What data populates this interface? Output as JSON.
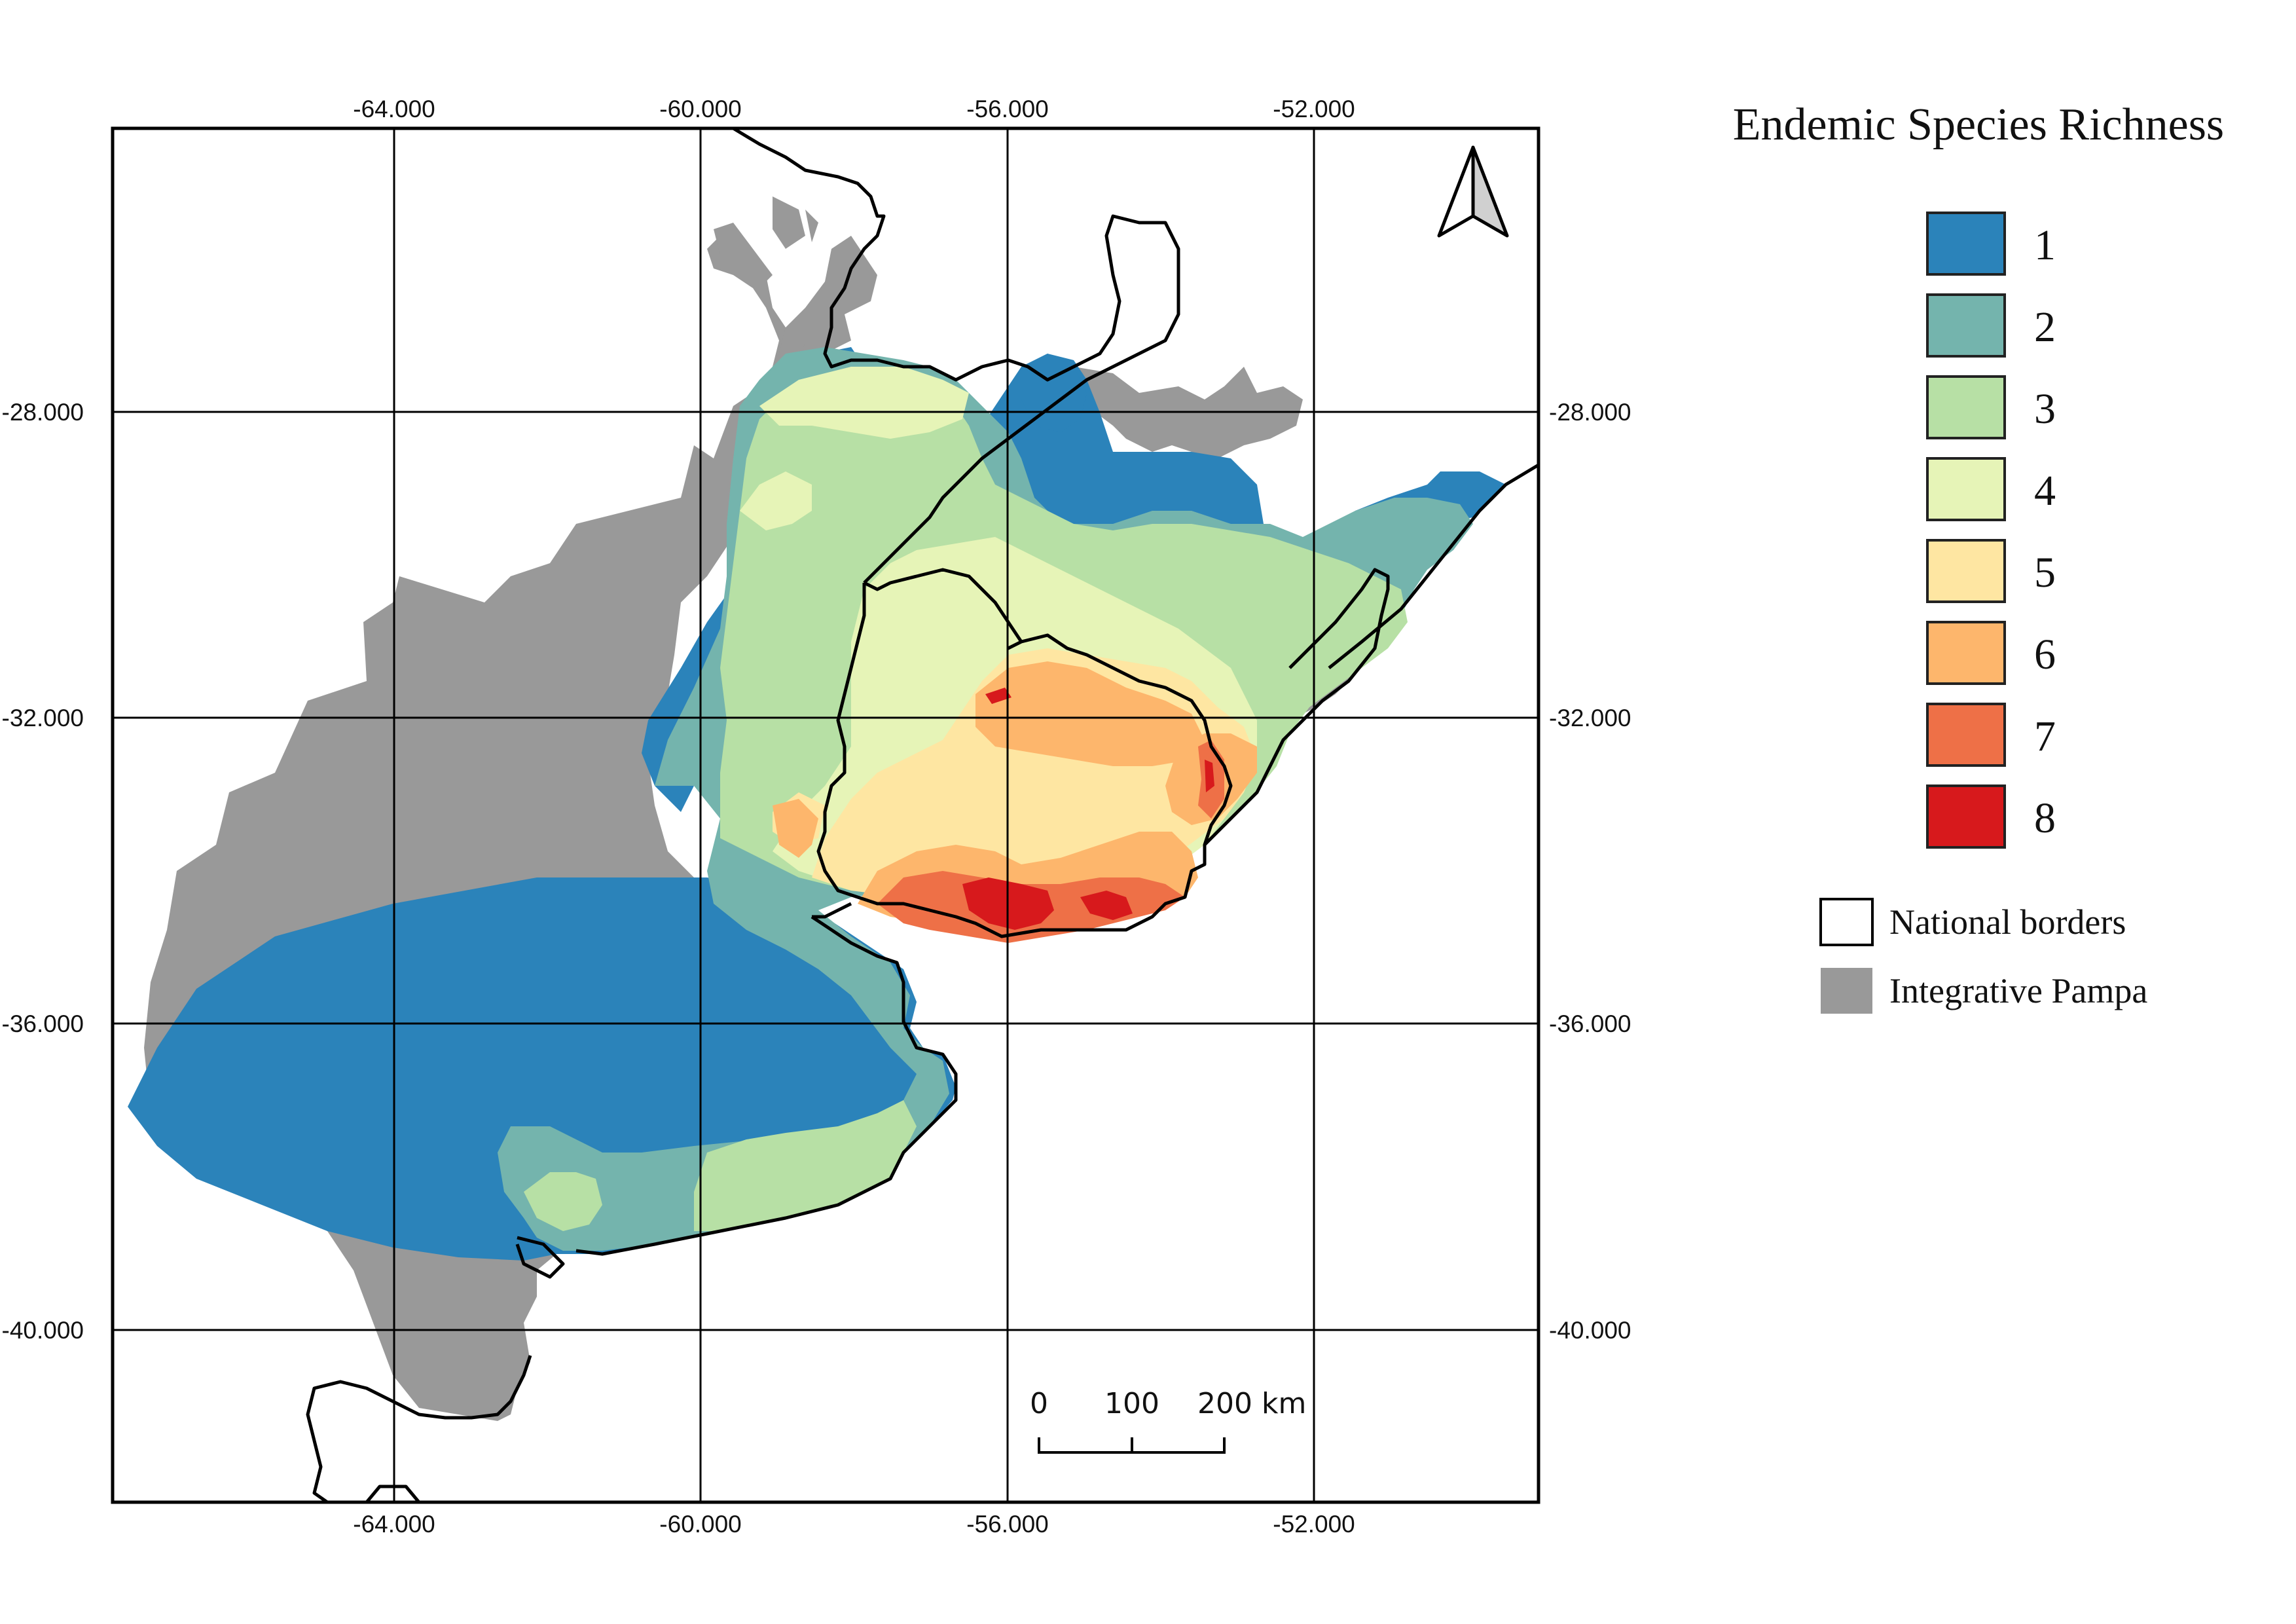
{
  "map": {
    "lon_ticks": [
      "-64.000",
      "-60.000",
      "-56.000",
      "-52.000"
    ],
    "lat_ticks": [
      "-28.000",
      "-32.000",
      "-36.000",
      "-40.000"
    ]
  },
  "legend": {
    "title": "Endemic Species Richness",
    "classes": [
      {
        "label": "1",
        "color": "#2b83ba"
      },
      {
        "label": "2",
        "color": "#74b4ad"
      },
      {
        "label": "3",
        "color": "#b7e0a5"
      },
      {
        "label": "4",
        "color": "#e6f4b7"
      },
      {
        "label": "5",
        "color": "#fee6a2"
      },
      {
        "label": "6",
        "color": "#fdb66c"
      },
      {
        "label": "7",
        "color": "#ee7047"
      },
      {
        "label": "8",
        "color": "#d7191c"
      }
    ],
    "borders_label": "National borders",
    "pampa_label": "Integrative Pampa",
    "pampa_color": "#999999"
  },
  "scale_bar": {
    "labels": [
      "0",
      "100",
      "200 km"
    ]
  },
  "north_arrow": {
    "icon": "north-arrow-icon"
  }
}
